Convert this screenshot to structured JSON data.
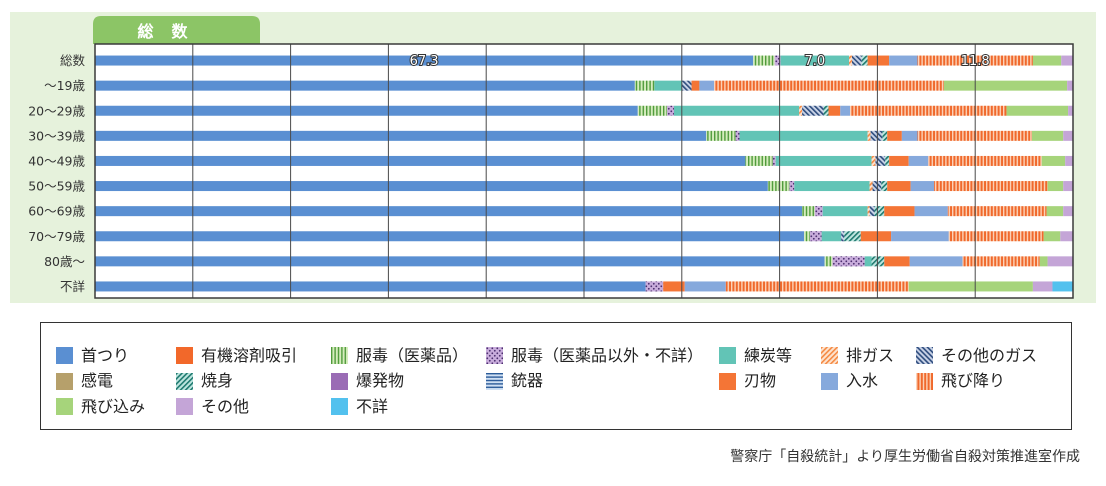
{
  "chart_data": {
    "type": "bar",
    "orientation": "horizontal",
    "stacked": true,
    "title": "総　数",
    "categories": [
      "総数",
      "〜19歳",
      "20〜29歳",
      "30〜39歳",
      "40〜49歳",
      "50〜59歳",
      "60〜69歳",
      "70〜79歳",
      "80歳〜",
      "不詳"
    ],
    "xlim": [
      0,
      100
    ],
    "grid": true,
    "grid_step": 10,
    "legend_position": "bottom",
    "series": [
      {
        "name": "首つり",
        "color": "#5a8fd2",
        "fill_pattern": "solid",
        "values": [
          67.3,
          55.2,
          55.5,
          62.5,
          66.5,
          68.8,
          72.3,
          72.5,
          74.6,
          56.3
        ]
      },
      {
        "name": "有機溶剤吸引",
        "color": "#f2682a",
        "fill_pattern": "solid",
        "values": [
          0,
          0,
          0,
          0,
          0,
          0,
          0,
          0,
          0,
          0
        ]
      },
      {
        "name": "服毒（医薬品）",
        "color": "#d5ecbd",
        "pattern_color": "#4f9b3b",
        "fill_pattern": "vertical-stripes",
        "values": [
          2.2,
          2.0,
          3.0,
          3.0,
          2.8,
          2.2,
          1.3,
          0.6,
          0.8,
          0
        ]
      },
      {
        "name": "服毒（医薬品以外・不詳）",
        "color": "#c8acdb",
        "pattern_color": "#4b2e6e",
        "fill_pattern": "dots",
        "values": [
          0.6,
          0,
          0.7,
          0.4,
          0.3,
          0.5,
          0.8,
          1.2,
          3.3,
          1.8
        ]
      },
      {
        "name": "練炭等",
        "color": "#62c4b6",
        "fill_pattern": "solid",
        "values": [
          7.0,
          2.8,
          12.8,
          13.1,
          9.8,
          7.7,
          4.6,
          2.0,
          0.7,
          0
        ]
      },
      {
        "name": "排ガス",
        "color": "#fde4d0",
        "pattern_color": "#f58a44",
        "fill_pattern": "diagonal-stripes",
        "values": [
          0.3,
          0,
          0.3,
          0.3,
          0.4,
          0.3,
          0.2,
          0,
          0,
          0
        ]
      },
      {
        "name": "その他のガス",
        "color": "#c8d2e6",
        "pattern_color": "#2e4c7d",
        "fill_pattern": "diagonal-stripes-reverse",
        "values": [
          1.0,
          1.0,
          2.2,
          1.2,
          1.0,
          0.9,
          0.5,
          0.3,
          0,
          0
        ]
      },
      {
        "name": "感電",
        "color": "#b6a06b",
        "fill_pattern": "solid",
        "values": [
          0,
          0,
          0,
          0,
          0,
          0,
          0,
          0,
          0,
          0
        ]
      },
      {
        "name": "焼身",
        "color": "#bfe6e0",
        "pattern_color": "#1f7a70",
        "fill_pattern": "diagonal-stripes",
        "values": [
          0.6,
          0,
          0.5,
          0.5,
          0.4,
          0.6,
          1.0,
          1.7,
          1.3,
          0
        ]
      },
      {
        "name": "爆発物",
        "color": "#9a6cb5",
        "fill_pattern": "solid",
        "values": [
          0,
          0,
          0,
          0,
          0,
          0,
          0,
          0,
          0,
          0
        ]
      },
      {
        "name": "銃器",
        "color": "#d0e0f3",
        "pattern_color": "#2b5b99",
        "fill_pattern": "horizontal-stripes",
        "values": [
          0,
          0,
          0,
          0,
          0,
          0,
          0,
          0,
          0,
          0
        ]
      },
      {
        "name": "刃物",
        "color": "#f47536",
        "fill_pattern": "solid",
        "values": [
          2.2,
          0.8,
          1.2,
          1.5,
          2.0,
          2.4,
          3.1,
          3.1,
          2.6,
          2.2
        ]
      },
      {
        "name": "入水",
        "color": "#86a9dc",
        "fill_pattern": "solid",
        "values": [
          2.9,
          1.5,
          1.0,
          1.6,
          2.0,
          2.4,
          3.4,
          5.9,
          5.4,
          4.2
        ]
      },
      {
        "name": "飛び降り",
        "color": "#f0692c",
        "pattern_color": "#fcd3b8",
        "fill_pattern": "vertical-stripes",
        "values": [
          11.8,
          23.5,
          16.0,
          11.7,
          11.6,
          11.6,
          10.1,
          9.7,
          7.9,
          18.7
        ]
      },
      {
        "name": "飛び込み",
        "color": "#a6d47b",
        "fill_pattern": "solid",
        "values": [
          2.9,
          12.6,
          6.3,
          3.2,
          2.4,
          1.6,
          1.7,
          1.7,
          0.8,
          12.7
        ]
      },
      {
        "name": "その他",
        "color": "#c4a5d7",
        "fill_pattern": "solid",
        "values": [
          1.2,
          0.6,
          0.5,
          1.0,
          0.8,
          1.0,
          1.0,
          1.3,
          2.6,
          2.0
        ]
      },
      {
        "name": "不詳",
        "color": "#53c1ee",
        "fill_pattern": "solid",
        "values": [
          0,
          0,
          0,
          0,
          0,
          0,
          0,
          0,
          0,
          2.1
        ]
      }
    ],
    "data_labels": [
      {
        "category": "総数",
        "series": "首つり",
        "text": "67.3"
      },
      {
        "category": "総数",
        "series": "練炭等",
        "text": "7.0"
      },
      {
        "category": "総数",
        "series": "飛び降り",
        "text": "11.8"
      }
    ],
    "source": "警察庁「自殺統計」より厚生労働省自殺対策推進室作成"
  }
}
